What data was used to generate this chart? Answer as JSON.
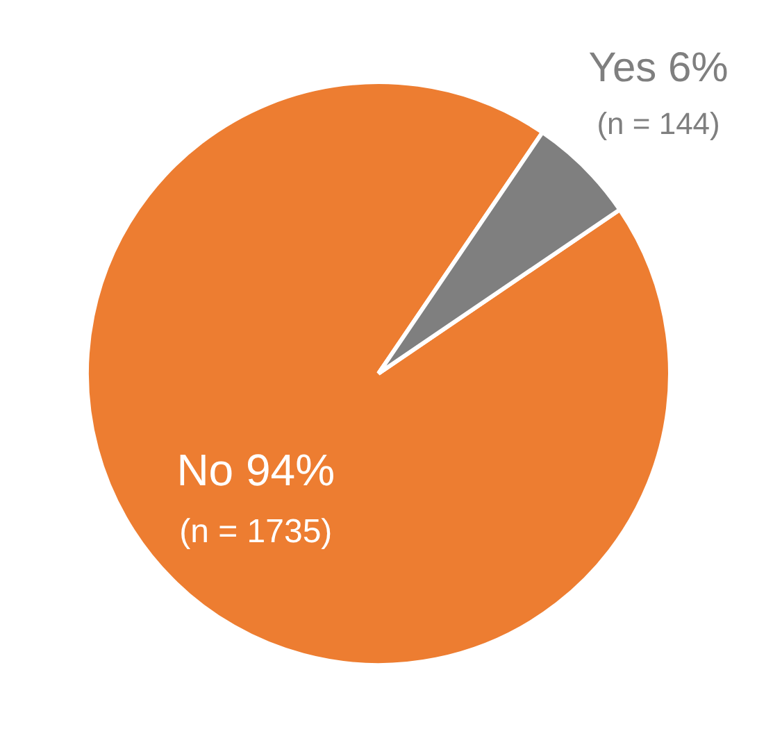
{
  "chart_data": {
    "type": "pie",
    "categories": [
      "No",
      "Yes"
    ],
    "values": [
      94,
      6
    ],
    "colors": [
      "#ed7d31",
      "#7f7f7f"
    ],
    "value_labels": [
      "94%",
      "6%"
    ],
    "annotations": [
      {
        "text": "(n = 1735)",
        "x": "No"
      },
      {
        "text": "(n = 144)",
        "x": "Yes"
      }
    ]
  }
}
